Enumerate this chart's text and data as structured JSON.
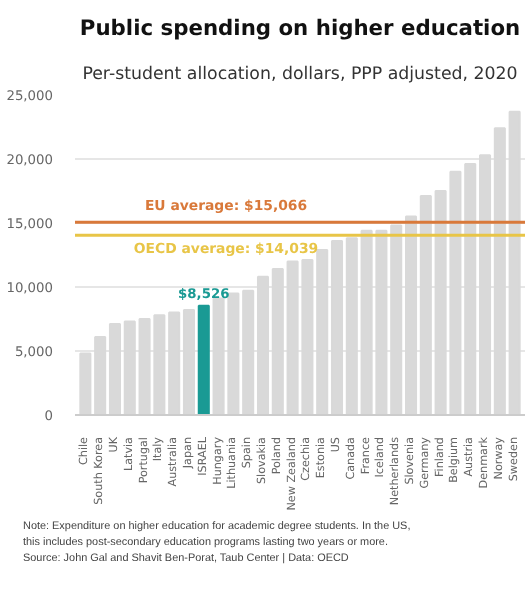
{
  "chart_data": {
    "type": "bar",
    "title": "Public spending on higher education",
    "subtitle": "Per-student allocation, dollars, PPP adjusted, 2020",
    "categories": [
      "Chile",
      "South Korea",
      "UK",
      "Latvia",
      "Portugal",
      "Italy",
      "Australia",
      "Japan",
      "ISRAEL",
      "Hungary",
      "Lithuania",
      "Spain",
      "Slovakia",
      "Poland",
      "New Zealand",
      "Czechia",
      "Estonia",
      "US",
      "Canada",
      "France",
      "Iceland",
      "Netherlands",
      "Slovenia",
      "Germany",
      "Finland",
      "Belgium",
      "Austria",
      "Denmark",
      "Norway",
      "Sweden"
    ],
    "values": [
      4800,
      6100,
      7100,
      7300,
      7500,
      7800,
      8000,
      8200,
      8526,
      9100,
      9500,
      9700,
      10800,
      11400,
      12000,
      12100,
      12900,
      13600,
      13800,
      14400,
      14400,
      14800,
      15500,
      17100,
      17500,
      19000,
      19600,
      20300,
      22400,
      23700
    ],
    "colors": [
      "#d9d9d9",
      "#d9d9d9",
      "#d9d9d9",
      "#d9d9d9",
      "#d9d9d9",
      "#d9d9d9",
      "#d9d9d9",
      "#d9d9d9",
      "#1a9a94",
      "#d9d9d9",
      "#d9d9d9",
      "#d9d9d9",
      "#d9d9d9",
      "#d9d9d9",
      "#d9d9d9",
      "#d9d9d9",
      "#d9d9d9",
      "#d9d9d9",
      "#d9d9d9",
      "#d9d9d9",
      "#d9d9d9",
      "#d9d9d9",
      "#d9d9d9",
      "#d9d9d9",
      "#d9d9d9",
      "#d9d9d9",
      "#d9d9d9",
      "#d9d9d9",
      "#d9d9d9",
      "#d9d9d9"
    ],
    "value_labels": [
      null,
      null,
      null,
      null,
      null,
      null,
      null,
      null,
      "$8,526",
      null,
      null,
      null,
      null,
      null,
      null,
      null,
      null,
      null,
      null,
      null,
      null,
      null,
      null,
      null,
      null,
      null,
      null,
      null,
      null,
      null
    ],
    "ylim": [
      0,
      25000
    ],
    "yticks": [
      0,
      {
        "value": 5000,
        "label": "5,000"
      },
      {
        "value": 10000,
        "label": "10,000"
      },
      {
        "value": 15000,
        "label": "15,000"
      },
      {
        "value": 20000,
        "label": "20,000"
      },
      {
        "value": 25000,
        "label": "25,000"
      }
    ],
    "grid": "y",
    "ref_lines": [
      {
        "axis": "y",
        "value": 15066,
        "label": "EU average: $15,066",
        "color": "#d9793a"
      },
      {
        "axis": "y",
        "value": 14039,
        "label": "OECD average: $14,039",
        "color": "#e8c547"
      }
    ],
    "annotations": [
      "Note: Expenditure on higher education for academic degree students. In the US,",
      "this includes post-secondary education programs lasting two years or more.",
      "Source: John Gal and Shavit Ben-Porat, Taub Center | Data: OECD"
    ]
  }
}
